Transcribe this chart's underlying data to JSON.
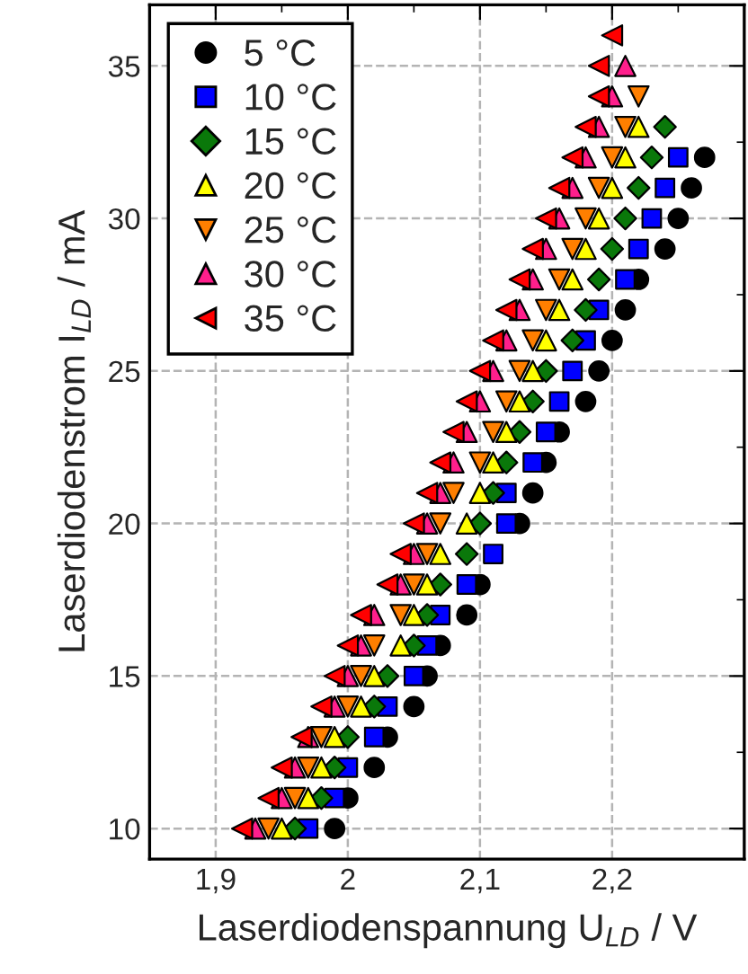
{
  "chart_data": {
    "type": "scatter",
    "xlabel": "Laserdiodenspannung U$_{LD}$ / V",
    "ylabel": "Laserdiodenstrom I$_{LD}$ / mA",
    "xlim": [
      1.85,
      2.3
    ],
    "ylim": [
      9,
      37
    ],
    "xticks": [
      {
        "value": 1.9,
        "label": "1,9"
      },
      2,
      {
        "value": 2.1,
        "label": "2,1"
      },
      {
        "value": 2.2,
        "label": "2,2"
      }
    ],
    "yticks": [
      10,
      15,
      20,
      25,
      30,
      35
    ],
    "grid": true,
    "legend": "top left",
    "series": [
      {
        "name": "5 °C",
        "color": "#000000",
        "marker": "circle",
        "x": [
          1.99,
          2.0,
          2.02,
          2.03,
          2.05,
          2.06,
          2.07,
          2.09,
          2.1,
          2.13,
          2.14,
          2.15,
          2.16,
          2.18,
          2.19,
          2.2,
          2.21,
          2.22,
          2.24,
          2.25,
          2.26,
          2.27
        ],
        "values": [
          10,
          11,
          12,
          13,
          14,
          15,
          16,
          17,
          18,
          20,
          21,
          22,
          23,
          24,
          25,
          26,
          27,
          28,
          29,
          30,
          31,
          32
        ]
      },
      {
        "name": "10 °C",
        "color": "#0000ff",
        "marker": "square",
        "x": [
          1.97,
          1.99,
          2.0,
          2.02,
          2.03,
          2.05,
          2.06,
          2.07,
          2.09,
          2.11,
          2.12,
          2.12,
          2.14,
          2.15,
          2.16,
          2.17,
          2.18,
          2.19,
          2.21,
          2.22,
          2.23,
          2.24,
          2.25
        ],
        "values": [
          10,
          11,
          12,
          13,
          14,
          15,
          16,
          17,
          18,
          19,
          20,
          21,
          22,
          23,
          24,
          25,
          26,
          27,
          28,
          29,
          30,
          31,
          32
        ]
      },
      {
        "name": "15 °C",
        "color": "#0a780a",
        "marker": "diamond",
        "x": [
          1.96,
          1.98,
          1.99,
          2.0,
          2.02,
          2.03,
          2.05,
          2.06,
          2.07,
          2.09,
          2.1,
          2.11,
          2.12,
          2.13,
          2.14,
          2.15,
          2.17,
          2.18,
          2.19,
          2.2,
          2.21,
          2.22,
          2.23,
          2.24
        ],
        "values": [
          10,
          11,
          12,
          13,
          14,
          15,
          16,
          17,
          18,
          19,
          20,
          21,
          22,
          23,
          24,
          25,
          26,
          27,
          28,
          29,
          30,
          31,
          32,
          33
        ]
      },
      {
        "name": "20 °C",
        "color": "#ffff00",
        "marker": "triangle",
        "x": [
          1.95,
          1.97,
          1.98,
          1.99,
          2.01,
          2.02,
          2.04,
          2.05,
          2.06,
          2.07,
          2.09,
          2.1,
          2.11,
          2.12,
          2.13,
          2.14,
          2.15,
          2.16,
          2.17,
          2.18,
          2.19,
          2.2,
          2.21,
          2.22
        ],
        "values": [
          10,
          11,
          12,
          13,
          14,
          15,
          16,
          17,
          18,
          19,
          20,
          21,
          22,
          23,
          24,
          25,
          26,
          27,
          28,
          29,
          30,
          31,
          32,
          33
        ]
      },
      {
        "name": "25 °C",
        "color": "#ff7f00",
        "marker": "triangle-down",
        "x": [
          1.94,
          1.96,
          1.97,
          1.98,
          2.0,
          2.01,
          2.02,
          2.04,
          2.05,
          2.06,
          2.07,
          2.08,
          2.1,
          2.11,
          2.12,
          2.13,
          2.14,
          2.15,
          2.16,
          2.17,
          2.18,
          2.19,
          2.2,
          2.21,
          2.22
        ],
        "values": [
          10,
          11,
          12,
          13,
          14,
          15,
          16,
          17,
          18,
          19,
          20,
          21,
          22,
          23,
          24,
          25,
          26,
          27,
          28,
          29,
          30,
          31,
          32,
          33,
          34
        ]
      },
      {
        "name": "30 °C",
        "color": "#ff1f8c",
        "marker": "triangle",
        "x": [
          1.93,
          1.95,
          1.96,
          1.97,
          1.99,
          2.0,
          2.01,
          2.02,
          2.04,
          2.05,
          2.06,
          2.07,
          2.08,
          2.09,
          2.1,
          2.11,
          2.12,
          2.13,
          2.14,
          2.15,
          2.16,
          2.17,
          2.18,
          2.19,
          2.2,
          2.21
        ],
        "values": [
          10,
          11,
          12,
          13,
          14,
          15,
          16,
          17,
          18,
          19,
          20,
          21,
          22,
          23,
          24,
          25,
          26,
          27,
          28,
          29,
          30,
          31,
          32,
          33,
          34,
          35
        ]
      },
      {
        "name": "35 °C",
        "color": "#ff0000",
        "marker": "triangle-left",
        "x": [
          1.92,
          1.94,
          1.95,
          1.965,
          1.98,
          1.99,
          2.0,
          2.01,
          2.03,
          2.04,
          2.05,
          2.06,
          2.07,
          2.08,
          2.09,
          2.1,
          2.11,
          2.12,
          2.13,
          2.14,
          2.15,
          2.16,
          2.17,
          2.18,
          2.19,
          2.19,
          2.2
        ],
        "values": [
          10,
          11,
          12,
          13,
          14,
          15,
          16,
          17,
          18,
          19,
          20,
          21,
          22,
          23,
          24,
          25,
          26,
          27,
          28,
          29,
          30,
          31,
          32,
          33,
          34,
          35,
          36
        ]
      }
    ]
  }
}
